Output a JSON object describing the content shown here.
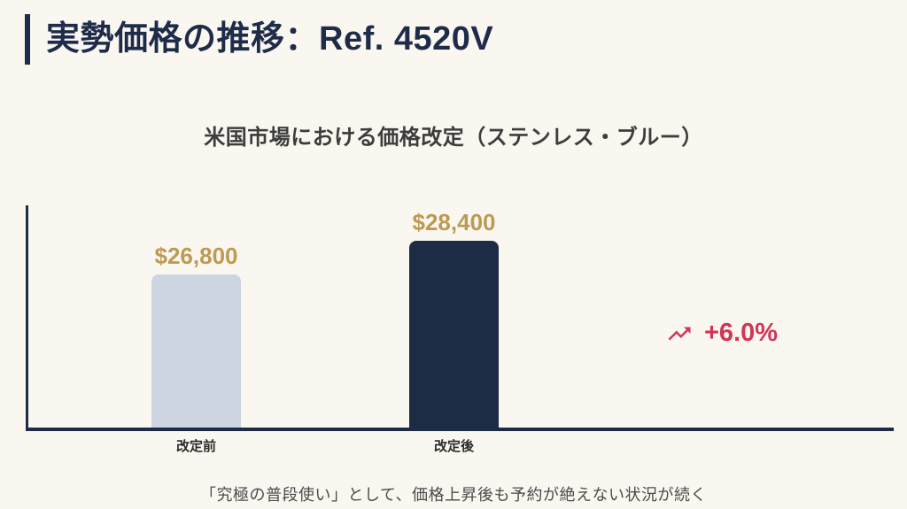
{
  "page": {
    "title": "実勢価格の推移：Ref. 4520V",
    "caption": "「究極の普段使い」として、価格上昇後も予約が絶えない状況が続く"
  },
  "chart_data": {
    "type": "bar",
    "title": "米国市場における価格改定（ステンレス・ブルー）",
    "categories": [
      "改定前",
      "改定後"
    ],
    "values": [
      26800,
      28400
    ],
    "value_labels": [
      "$26,800",
      "$28,400"
    ],
    "bar_colors": [
      "#cdd4e2",
      "#1d2b44"
    ],
    "ylim": [
      19520,
      30090
    ],
    "grid": false,
    "legend": "none",
    "xlabel": "",
    "ylabel": "",
    "annotation": {
      "icon": "trending-up-icon",
      "label": "+6.0%",
      "color": "#d23558"
    }
  },
  "colors": {
    "background": "#faf7f1",
    "navy": "#1e2c4a",
    "axis": "#1d2b44",
    "bar_light": "#cdd4e2",
    "bar_dark": "#1d2b44",
    "gold": "#bd9a52",
    "crimson": "#d23558",
    "subtitle_text": "#3d3d3d",
    "caption_text": "#4b4b4b",
    "tick_text": "#2b2b2b"
  }
}
